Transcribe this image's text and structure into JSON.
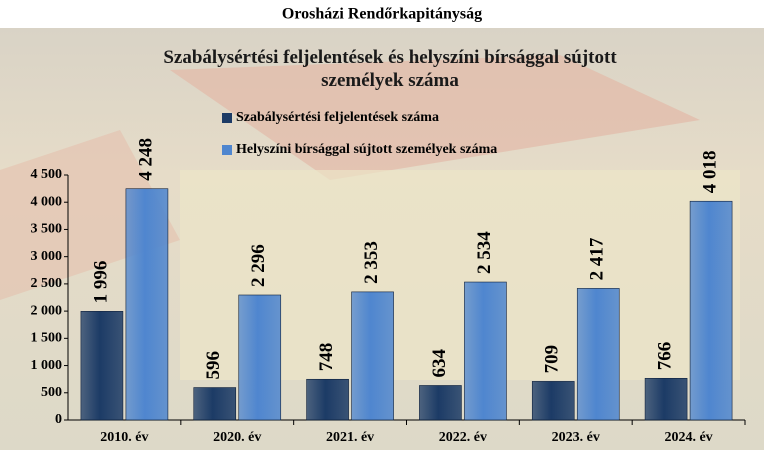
{
  "header": "Orosházi Rendőrkapitányság",
  "chart_data": {
    "type": "bar",
    "title": "Szabálysértési feljelentések és helyszíni bírsággal sújtott személyek száma",
    "categories": [
      "2010. év",
      "2020. év",
      "2021. év",
      "2022. év",
      "2023. év",
      "2024. év"
    ],
    "series": [
      {
        "name": "Szabálysértési feljelentések száma",
        "color": "#1c3b66",
        "values": [
          1996,
          596,
          748,
          634,
          709,
          766
        ],
        "value_labels": [
          "1 996",
          "596",
          "748",
          "634",
          "709",
          "766"
        ]
      },
      {
        "name": "Helyszíni bírsággal sújtott személyek száma",
        "color": "#4f86cf",
        "values": [
          4248,
          2296,
          2353,
          2534,
          2417,
          4018
        ],
        "value_labels": [
          "4 248",
          "2 296",
          "2 353",
          "2 534",
          "2 417",
          "4 018"
        ]
      }
    ],
    "ylim": [
      0,
      4500
    ],
    "yticks": [
      0,
      500,
      {
        "value": 1000,
        "label": "1 000"
      },
      {
        "value": 1500,
        "label": "1 500"
      },
      {
        "value": 2000,
        "label": "2 000"
      },
      {
        "value": 2500,
        "label": "2 500"
      },
      {
        "value": 3000,
        "label": "3 000"
      },
      {
        "value": 3500,
        "label": "3 500"
      },
      {
        "value": 4000,
        "label": "4 000"
      },
      {
        "value": 4500,
        "label": "4 500"
      }
    ],
    "grid": false
  }
}
